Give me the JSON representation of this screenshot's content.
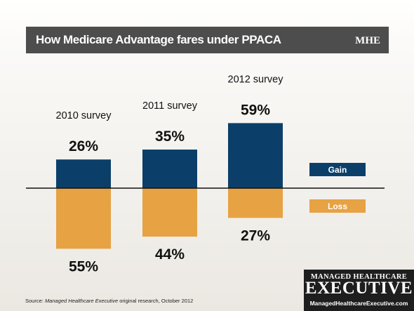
{
  "header": {
    "title": "How Medicare Advantage fares under PPACA",
    "logo_text": "MHE"
  },
  "colors": {
    "gain": "#0b3f6a",
    "loss": "#e6a243",
    "header_bg": "#4d4d4d",
    "text": "#111111"
  },
  "chart_data": {
    "type": "bar",
    "title": "How Medicare Advantage fares under PPACA",
    "categories": [
      "2010 survey",
      "2011 survey",
      "2012 survey"
    ],
    "series": [
      {
        "name": "Gain",
        "values": [
          26,
          35,
          59
        ],
        "color": "#0b3f6a",
        "direction": "up",
        "labels": [
          "26%",
          "35%",
          "59%"
        ]
      },
      {
        "name": "Loss",
        "values": [
          55,
          44,
          27
        ],
        "color": "#e6a243",
        "direction": "down",
        "labels": [
          "55%",
          "44%",
          "27%"
        ]
      }
    ],
    "unit": "%",
    "legend": "right",
    "grid": false
  },
  "footer": {
    "source_prefix": "Source: ",
    "source_italic": "Managed Healthcare Executive",
    "source_suffix": " original research, October 2012"
  },
  "brand": {
    "top": "MANAGED HEALTHCARE",
    "main": "EXECUTIVE",
    "url": "ManagedHealthcareExecutive.com"
  }
}
